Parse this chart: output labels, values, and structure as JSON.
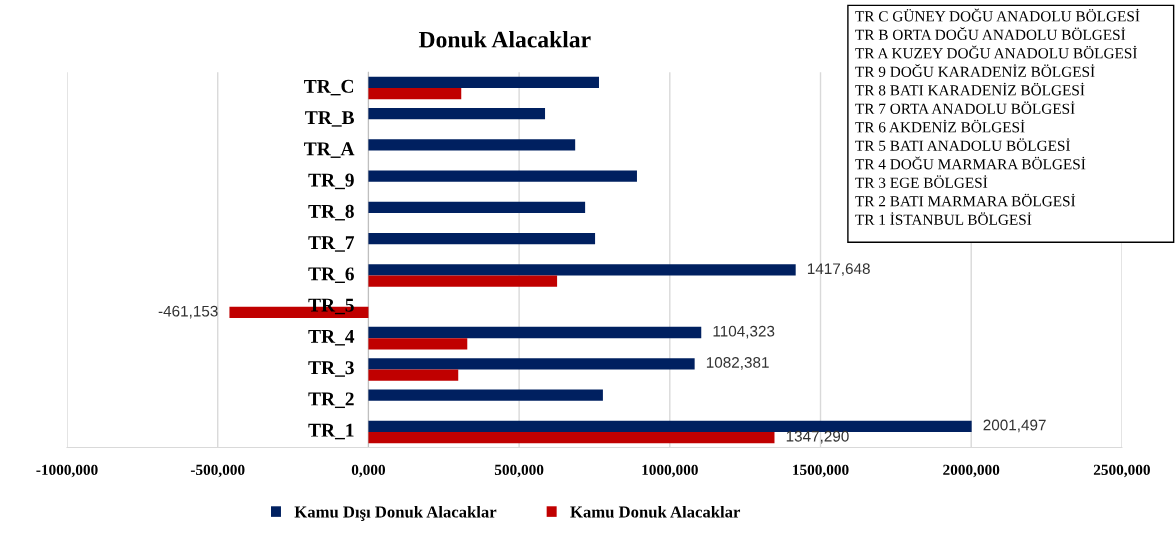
{
  "chart_data": {
    "type": "bar",
    "orientation": "horizontal",
    "title": "Donuk Alacaklar",
    "categories": [
      "TR_C",
      "TR_B",
      "TR_A",
      "TR_9",
      "TR_8",
      "TR_7",
      "TR_6",
      "TR_5",
      "TR_4",
      "TR_3",
      "TR_2",
      "TR_1"
    ],
    "series": [
      {
        "name": "Kamu Dışı Donuk Alacaklar",
        "color": "#002060",
        "values": [
          765000,
          586000,
          686000,
          891000,
          719000,
          752000,
          1417648,
          null,
          1104323,
          1082381,
          778000,
          2001497
        ],
        "value_labels": [
          null,
          null,
          null,
          null,
          null,
          null,
          "1417,648",
          null,
          "1104,323",
          "1082,381",
          null,
          "2001,497"
        ]
      },
      {
        "name": "Kamu Donuk Alacaklar",
        "color": "#c00000",
        "values": [
          308000,
          null,
          null,
          null,
          null,
          null,
          626000,
          -461153,
          328000,
          298000,
          null,
          1347290
        ],
        "value_labels": [
          null,
          null,
          null,
          null,
          null,
          null,
          null,
          "-461,153",
          null,
          null,
          null,
          "1347,290"
        ]
      }
    ],
    "xlim": [
      -1000000,
      2500000
    ],
    "xticks": [
      {
        "value": -1000000,
        "label": "-1000,000"
      },
      {
        "value": -500000,
        "label": "-500,000"
      },
      {
        "value": 0,
        "label": "0,000"
      },
      {
        "value": 500000,
        "label": "500,000"
      },
      {
        "value": 1000000,
        "label": "1000,000"
      },
      {
        "value": 1500000,
        "label": "1500,000"
      },
      {
        "value": 2000000,
        "label": "2000,000"
      },
      {
        "value": 2500000,
        "label": "2500,000"
      }
    ],
    "grid": "x",
    "legend": "bottom",
    "annotations": [
      "TR C GÜNEY DOĞU ANADOLU BÖLGESİ",
      "TR B ORTA DOĞU ANADOLU BÖLGESİ",
      "TR A KUZEY DOĞU ANADOLU BÖLGESİ",
      "TR 9 DOĞU KARADENİZ BÖLGESİ",
      "TR 8 BATI KARADENİZ BÖLGESİ",
      "TR 7 ORTA ANADOLU BÖLGESİ",
      "TR 6 AKDENİZ BÖLGESİ",
      "TR 5 BATI ANADOLU BÖLGESİ",
      "TR 4 DOĞU MARMARA BÖLGESİ",
      "TR 3 EGE BÖLGESİ",
      "TR 2 BATI MARMARA BÖLGESİ",
      "TR 1 İSTANBUL BÖLGESİ"
    ]
  }
}
